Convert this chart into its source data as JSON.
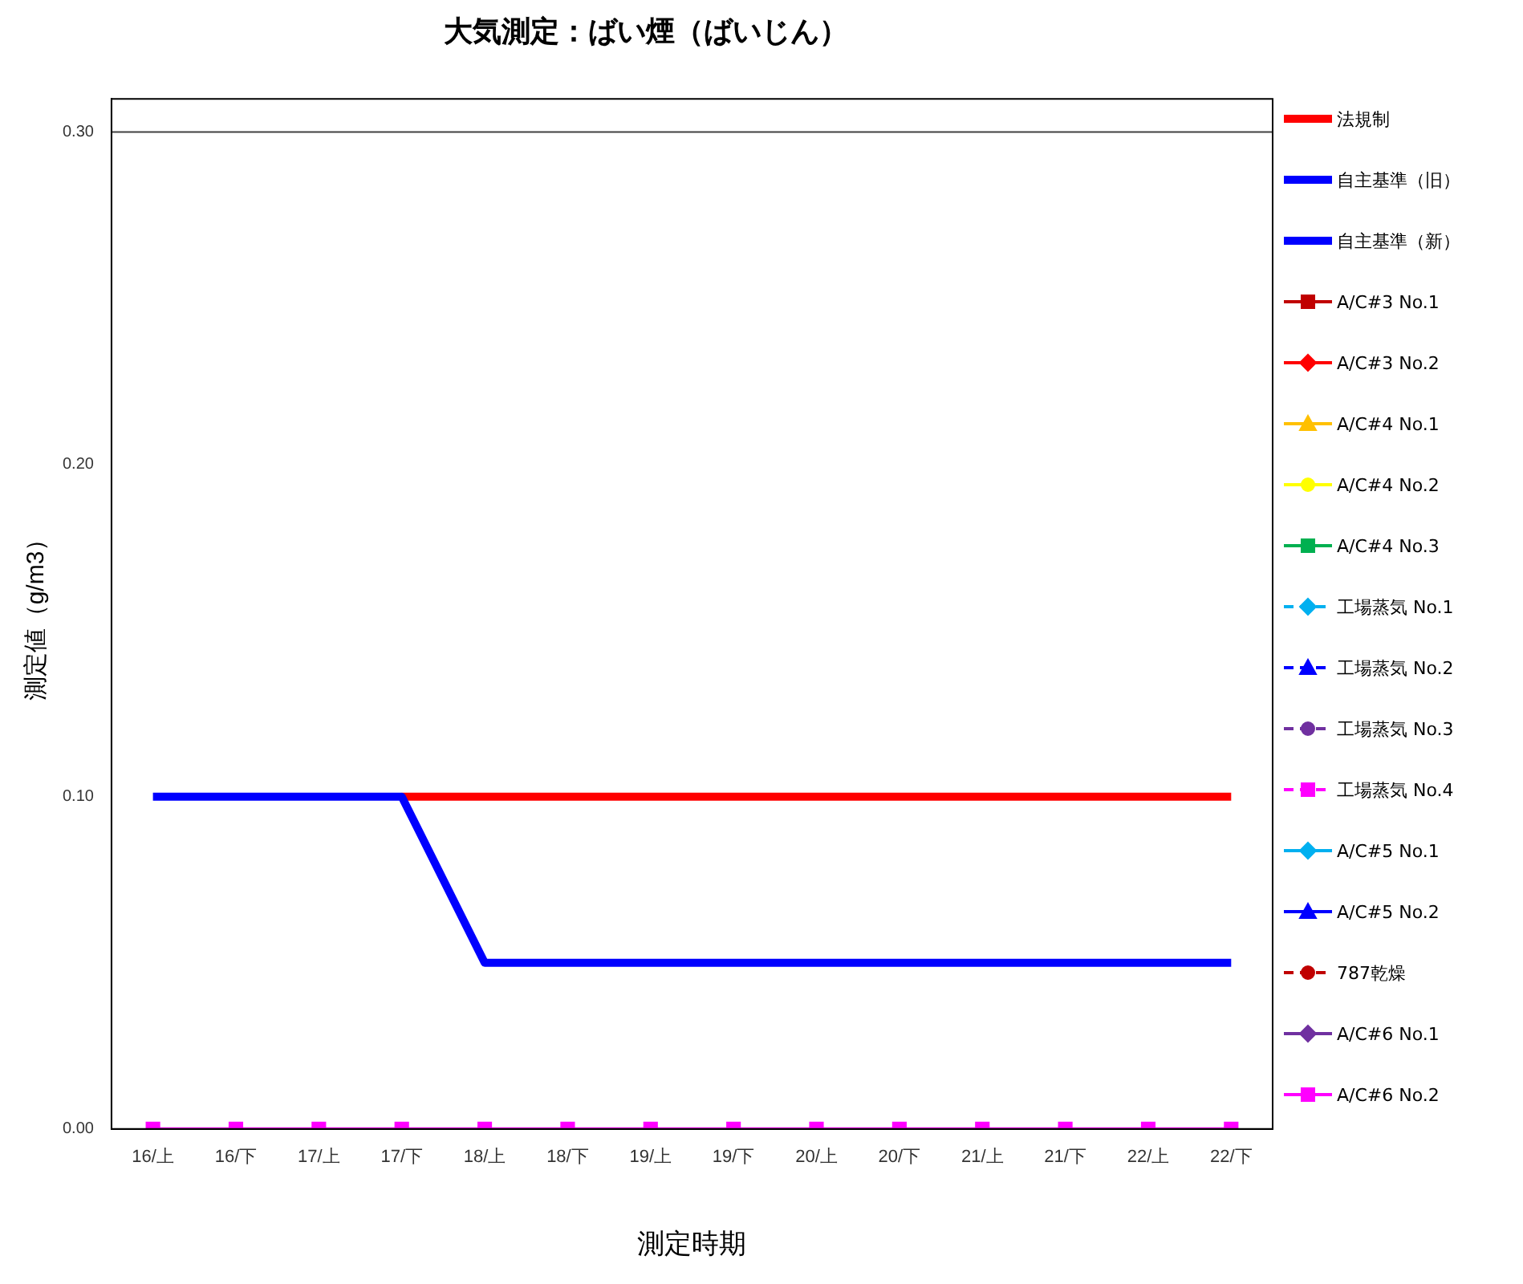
{
  "chart_data": {
    "type": "line",
    "title": "大気測定：ばい煙（ばいじん）",
    "xlabel": "測定時期",
    "ylabel": "測定値（g/m3）",
    "categories": [
      "16/上",
      "16/下",
      "17/上",
      "17/下",
      "18/上",
      "18/下",
      "19/上",
      "19/下",
      "20/上",
      "20/下",
      "21/上",
      "21/下",
      "22/上",
      "22/下"
    ],
    "ylim": [
      0,
      0.31
    ],
    "yticks": [
      {
        "value": 0,
        "label": "0.00"
      },
      {
        "value": 0.1,
        "label": "0.10"
      },
      {
        "value": 0.2,
        "label": "0.20"
      },
      {
        "value": 0.3,
        "label": "0.30"
      }
    ],
    "ref_lines": [
      {
        "axis": "y",
        "value": 0.3,
        "label": null,
        "color": "#404040"
      }
    ],
    "grid": false,
    "legend": "right",
    "series": [
      {
        "name": "法規制",
        "color": "#ff0000",
        "marker": "none",
        "values": [
          null,
          null,
          null,
          0.1,
          0.1,
          0.1,
          0.1,
          0.1,
          0.1,
          0.1,
          0.1,
          0.1,
          0.1,
          0.1
        ]
      },
      {
        "name": "自主基準（旧）",
        "color": "#0000ff",
        "marker": "none",
        "values": [
          0.1,
          0.1,
          0.1,
          0.1,
          0.05,
          0.05,
          0.05,
          0.05,
          0.05,
          0.05,
          0.05,
          0.05,
          0.05,
          0.05
        ]
      },
      {
        "name": "自主基準（新）",
        "color": "#0000ff",
        "marker": "none",
        "values": [
          null,
          null,
          null,
          null,
          null,
          null,
          null,
          null,
          null,
          null,
          null,
          null,
          null,
          null
        ]
      },
      {
        "name": "A/C#3 No.1",
        "color": "#c00000",
        "marker": "square",
        "values": [
          null,
          null,
          null,
          null,
          null,
          null,
          null,
          null,
          null,
          null,
          null,
          null,
          null,
          null
        ]
      },
      {
        "name": "A/C#3 No.2",
        "color": "#ff0000",
        "marker": "diamond",
        "values": [
          null,
          null,
          null,
          null,
          null,
          null,
          null,
          null,
          null,
          null,
          null,
          null,
          null,
          null
        ]
      },
      {
        "name": "A/C#4 No.1",
        "color": "#ffc000",
        "marker": "triangle",
        "values": [
          null,
          null,
          null,
          null,
          null,
          null,
          null,
          null,
          null,
          null,
          null,
          null,
          null,
          null
        ]
      },
      {
        "name": "A/C#4 No.2",
        "color": "#ffff00",
        "marker": "circle",
        "values": [
          null,
          null,
          null,
          null,
          null,
          null,
          null,
          null,
          null,
          null,
          null,
          null,
          null,
          null
        ]
      },
      {
        "name": "A/C#4 No.3",
        "color": "#00b050",
        "marker": "square",
        "values": [
          null,
          null,
          null,
          null,
          null,
          null,
          null,
          null,
          null,
          null,
          null,
          null,
          null,
          null
        ]
      },
      {
        "name": "工場蒸気 No.1",
        "color": "#00b0f0",
        "marker": "diamond",
        "line_style": "dashed",
        "values": [
          null,
          null,
          null,
          null,
          null,
          null,
          null,
          null,
          null,
          null,
          null,
          null,
          null,
          null
        ]
      },
      {
        "name": "工場蒸気 No.2",
        "color": "#0000ff",
        "marker": "triangle",
        "line_style": "dashed",
        "values": [
          null,
          null,
          null,
          null,
          null,
          null,
          null,
          null,
          null,
          null,
          null,
          null,
          null,
          null
        ]
      },
      {
        "name": "工場蒸気 No.3",
        "color": "#7030a0",
        "marker": "circle",
        "line_style": "dashed",
        "values": [
          null,
          null,
          null,
          null,
          null,
          null,
          null,
          null,
          null,
          null,
          null,
          null,
          null,
          null
        ]
      },
      {
        "name": "工場蒸気 No.4",
        "color": "#ff00ff",
        "marker": "square",
        "line_style": "dashed",
        "values": [
          null,
          null,
          null,
          null,
          null,
          null,
          null,
          null,
          null,
          null,
          null,
          null,
          null,
          null
        ]
      },
      {
        "name": "A/C#5 No.1",
        "color": "#00b0f0",
        "marker": "diamond",
        "values": [
          null,
          null,
          null,
          null,
          null,
          null,
          null,
          null,
          null,
          null,
          null,
          null,
          null,
          null
        ]
      },
      {
        "name": "A/C#5 No.2",
        "color": "#0000ff",
        "marker": "triangle",
        "values": [
          null,
          null,
          null,
          null,
          null,
          null,
          null,
          null,
          null,
          null,
          null,
          null,
          null,
          null
        ]
      },
      {
        "name": "787乾燥",
        "color": "#c00000",
        "marker": "circle",
        "line_style": "dashed",
        "values": [
          null,
          null,
          null,
          null,
          null,
          null,
          null,
          null,
          null,
          null,
          null,
          null,
          null,
          null
        ]
      },
      {
        "name": "A/C#6 No.1",
        "color": "#7030a0",
        "marker": "diamond",
        "values": [
          null,
          null,
          null,
          null,
          null,
          null,
          null,
          null,
          null,
          null,
          null,
          null,
          null,
          null
        ]
      },
      {
        "name": "A/C#6 No.2",
        "color": "#ff00ff",
        "marker": "square",
        "values": [
          0,
          0,
          0,
          0,
          0,
          0,
          0,
          0,
          0,
          0,
          0,
          0,
          0,
          0
        ]
      }
    ]
  }
}
